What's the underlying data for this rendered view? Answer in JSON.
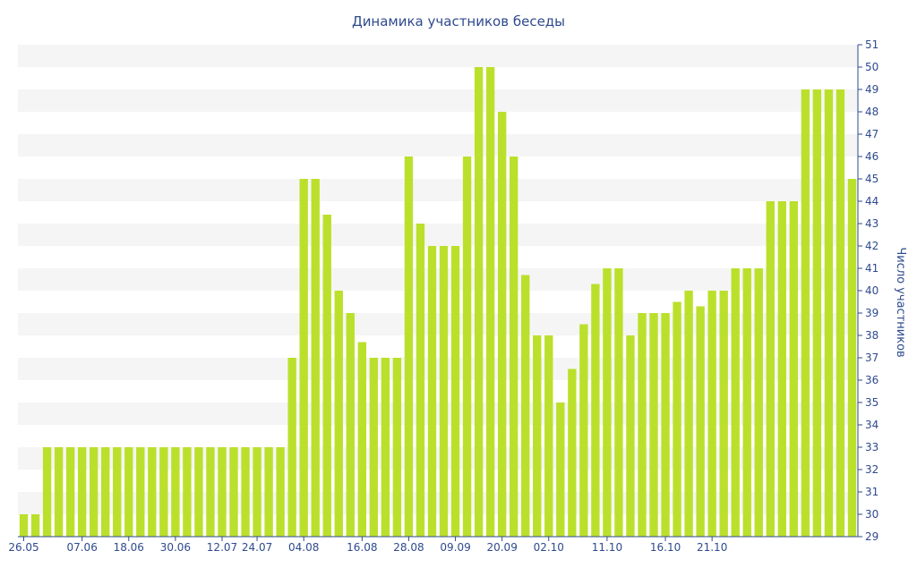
{
  "chart_data": {
    "type": "bar",
    "title": "Динамика участников беседы",
    "ylabel": "Число участников",
    "xlabel": "",
    "ylim": [
      29,
      51
    ],
    "y_axis_side": "right",
    "yticks": [
      29,
      30,
      31,
      32,
      33,
      34,
      35,
      36,
      37,
      38,
      39,
      40,
      41,
      42,
      43,
      44,
      45,
      46,
      47,
      48,
      49,
      50,
      51
    ],
    "x_tick_labels": [
      "26.05",
      "07.06",
      "18.06",
      "30.06",
      "12.07",
      "24.07",
      "04.08",
      "16.08",
      "28.08",
      "09.09",
      "20.09",
      "02.10",
      "11.10",
      "16.10",
      "21.10"
    ],
    "x_tick_bar_index": [
      0,
      5,
      9,
      13,
      17,
      20,
      24,
      29,
      33,
      37,
      41,
      45,
      50,
      55,
      59
    ],
    "values": [
      30,
      30,
      33,
      33,
      33,
      33,
      33,
      33,
      33,
      33,
      33,
      33,
      33,
      33,
      33,
      33,
      33,
      33,
      33,
      33,
      33,
      33,
      33,
      37,
      45,
      45,
      43.4,
      40,
      39,
      37.7,
      37,
      37,
      37,
      46,
      43,
      42,
      42,
      42,
      46,
      50,
      50,
      48,
      46,
      40.7,
      38,
      38,
      35,
      36.5,
      38.5,
      40.3,
      41,
      41,
      38,
      39,
      39,
      39,
      39.5,
      40,
      39.3,
      40,
      40,
      41,
      41,
      41,
      44,
      44,
      44,
      49,
      49,
      49,
      49,
      45
    ],
    "bar_color": "#bbe02c",
    "band_color": "#f5f5f5",
    "axis_color": "#2e4a8e",
    "title_color": "#2e4a8e",
    "grid": "alternating horizontal bands"
  }
}
